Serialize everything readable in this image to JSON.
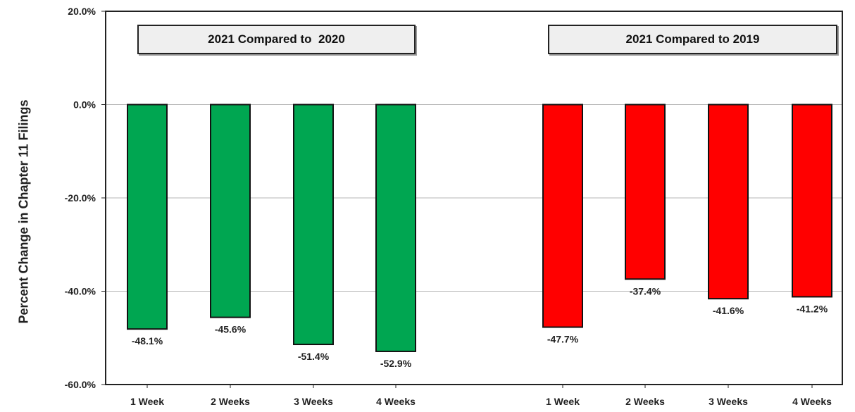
{
  "chart_data": {
    "type": "bar",
    "ylabel": "Percent Change in Chapter 11 Filings",
    "ylim": [
      -60,
      20
    ],
    "yticks": [
      "20.0%",
      "0.0%",
      "-20.0%",
      "-40.0%",
      "-60.0%"
    ],
    "ytick_values": [
      20,
      0,
      -20,
      -40,
      -60
    ],
    "grid": true,
    "groups": [
      {
        "title": "2021 Compared to  2020",
        "color": "#00a651",
        "categories": [
          "1 Week",
          "2 Weeks",
          "3 Weeks",
          "4 Weeks"
        ],
        "values": [
          -48.1,
          -45.6,
          -51.4,
          -52.9
        ],
        "labels": [
          "-48.1%",
          "-45.6%",
          "-51.4%",
          "-52.9%"
        ]
      },
      {
        "title": "2021 Compared to 2019",
        "color": "#ff0000",
        "categories": [
          "1 Week",
          "2 Weeks",
          "3 Weeks",
          "4 Weeks"
        ],
        "values": [
          -47.7,
          -37.4,
          -41.6,
          -41.2
        ],
        "labels": [
          "-47.7%",
          "-37.4%",
          "-41.6%",
          "-41.2%"
        ]
      }
    ]
  }
}
